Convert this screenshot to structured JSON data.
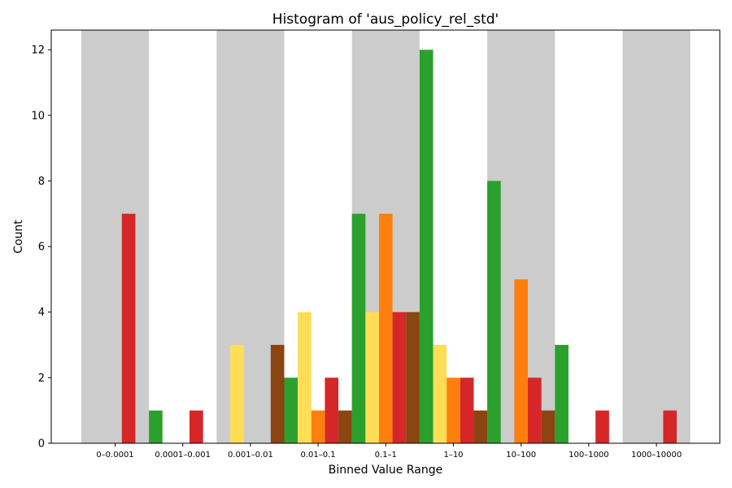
{
  "chart_data": {
    "type": "bar",
    "title": "Histogram of 'aus_policy_rel_std'",
    "xlabel": "Binned Value Range",
    "ylabel": "Count",
    "ylim": [
      0,
      12.6
    ],
    "yticks": [
      0,
      2,
      4,
      6,
      8,
      10,
      12
    ],
    "grid": false,
    "legend": "none",
    "background_bands": "alternating grey bands behind every other bin",
    "categories": [
      "0–0.0001",
      "0.0001–0.001",
      "0.001–0.01",
      "0.01–0.1",
      "0.1–1",
      "1–10",
      "10–100",
      "100–1000",
      "1000–10000"
    ],
    "series": [
      {
        "color": "#2ca02c",
        "values": [
          0,
          1,
          0,
          2,
          7,
          12,
          8,
          3,
          0
        ]
      },
      {
        "color": "#ffdd57",
        "values": [
          0,
          0,
          3,
          4,
          4,
          3,
          0,
          0,
          0
        ]
      },
      {
        "color": "#ff7f0e",
        "values": [
          0,
          0,
          0,
          1,
          7,
          2,
          5,
          0,
          0
        ]
      },
      {
        "color": "#d62728",
        "values": [
          7,
          1,
          0,
          2,
          4,
          2,
          2,
          1,
          1
        ]
      },
      {
        "color": "#8b4513",
        "values": [
          0,
          0,
          3,
          1,
          4,
          1,
          1,
          0,
          0
        ]
      }
    ],
    "band_color": "#cccccc"
  }
}
